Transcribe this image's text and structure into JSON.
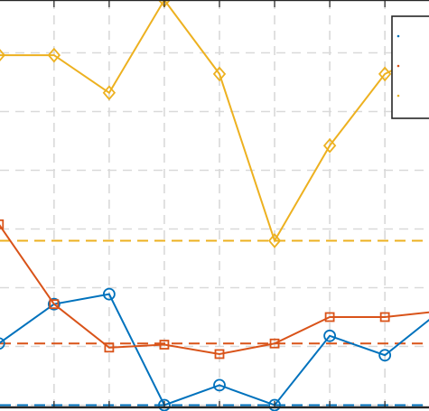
{
  "chart_data": {
    "type": "line",
    "title": "",
    "xlabel": "",
    "ylabel": "",
    "x": [
      0,
      1,
      2,
      3,
      4,
      5,
      6,
      7,
      8
    ],
    "xlim": [
      0.02,
      7.8
    ],
    "ylim": [
      -0.1,
      6.9
    ],
    "grid": true,
    "legend_placement": "top-right",
    "series": [
      {
        "color": "#0072BD",
        "marker": "circle",
        "values": [
          1.05,
          1.72,
          1.89,
          0.0,
          0.34,
          0.0,
          1.18,
          0.85,
          1.6
        ]
      },
      {
        "color": "#D95319",
        "marker": "square",
        "values": [
          3.08,
          1.72,
          0.98,
          1.03,
          0.87,
          1.05,
          1.5,
          1.5,
          1.6
        ]
      },
      {
        "color": "#EDB120",
        "marker": "diamond",
        "values": [
          5.96,
          5.96,
          5.32,
          6.9,
          5.64,
          2.8,
          4.42,
          5.64,
          6.1
        ]
      }
    ],
    "reference_lines": [
      {
        "color": "#0072BD",
        "y": 0.0
      },
      {
        "color": "#D95319",
        "y": 1.05
      },
      {
        "color": "#EDB120",
        "y": 2.8
      }
    ]
  }
}
